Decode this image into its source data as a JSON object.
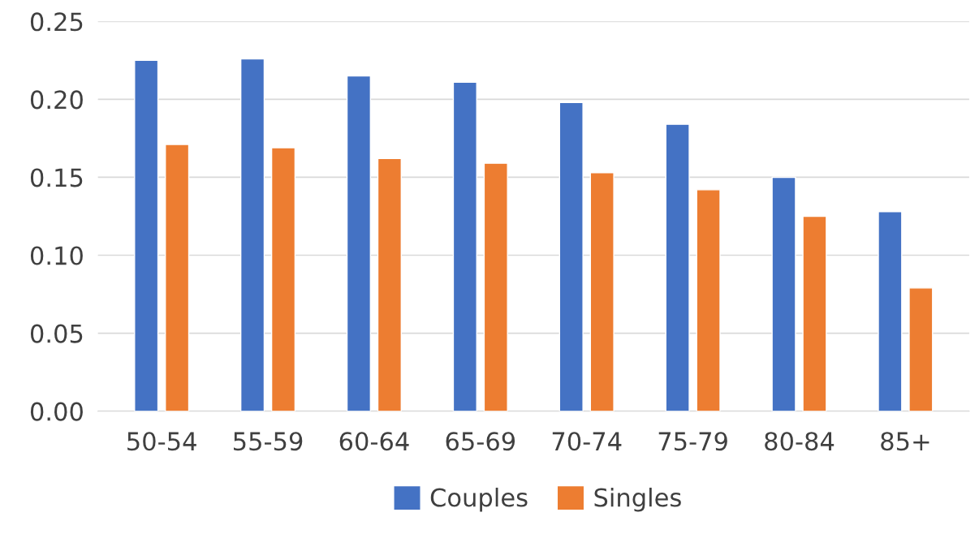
{
  "chart_data": {
    "type": "bar",
    "categories": [
      "50-54",
      "55-59",
      "60-64",
      "65-69",
      "70-74",
      "75-79",
      "80-84",
      "85+"
    ],
    "series": [
      {
        "name": "Couples",
        "color": "#4472c4",
        "values": [
          0.225,
          0.226,
          0.215,
          0.211,
          0.198,
          0.184,
          0.15,
          0.128
        ]
      },
      {
        "name": "Singles",
        "color": "#ed7d31",
        "values": [
          0.171,
          0.169,
          0.162,
          0.159,
          0.153,
          0.142,
          0.125,
          0.079
        ]
      }
    ],
    "ylim": [
      0,
      0.25
    ],
    "yticks": [
      {
        "value": 0,
        "label": "0.00"
      },
      {
        "value": 0.05,
        "label": "0.05"
      },
      {
        "value": 0.1,
        "label": "0.10"
      },
      {
        "value": 0.15,
        "label": "0.15"
      },
      {
        "value": 0.2,
        "label": "0.20"
      },
      {
        "value": 0.25,
        "label": "0.25"
      }
    ],
    "grid": "y",
    "legend": "bottom"
  }
}
